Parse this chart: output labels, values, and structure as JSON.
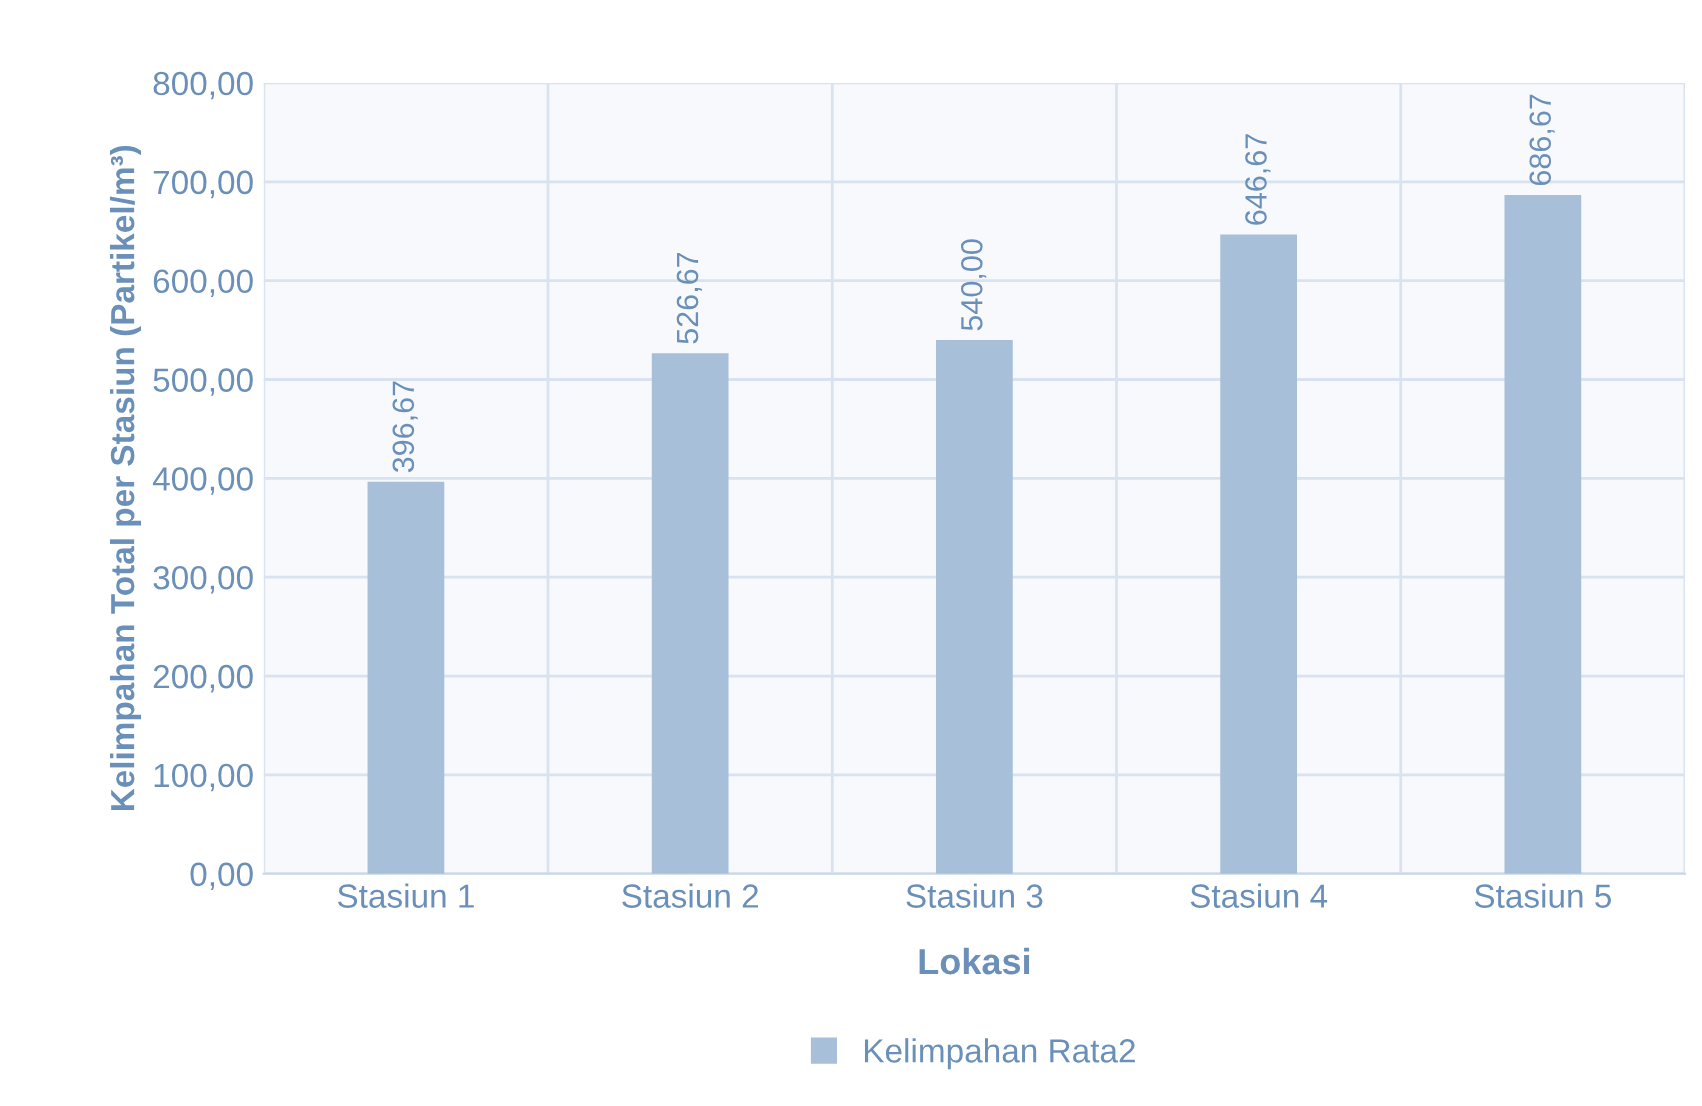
{
  "chart_data": {
    "type": "bar",
    "xlabel": "Lokasi",
    "ylabel": "Kelimpahan Total per Stasiun (Partikel/m³)",
    "categories": [
      "Stasiun 1",
      "Stasiun 2",
      "Stasiun 3",
      "Stasiun 4",
      "Stasiun 5"
    ],
    "series": [
      {
        "name": "Kelimpahan Rata2",
        "color": "#a7bfd9",
        "values": [
          396.67,
          526.67,
          540.0,
          646.67,
          686.67
        ],
        "value_labels": [
          "396,67",
          "526,67",
          "540,00",
          "646,67",
          "686,67"
        ]
      }
    ],
    "ylim": [
      0,
      800
    ],
    "yticks": [
      {
        "value": 0,
        "label": "0,00"
      },
      {
        "value": 100,
        "label": "100,00"
      },
      {
        "value": 200,
        "label": "200,00"
      },
      {
        "value": 300,
        "label": "300,00"
      },
      {
        "value": 400,
        "label": "400,00"
      },
      {
        "value": 500,
        "label": "500,00"
      },
      {
        "value": 600,
        "label": "600,00"
      },
      {
        "value": 700,
        "label": "700,00"
      },
      {
        "value": 800,
        "label": "800,00"
      }
    ],
    "grid": true,
    "legend": "bottom"
  }
}
